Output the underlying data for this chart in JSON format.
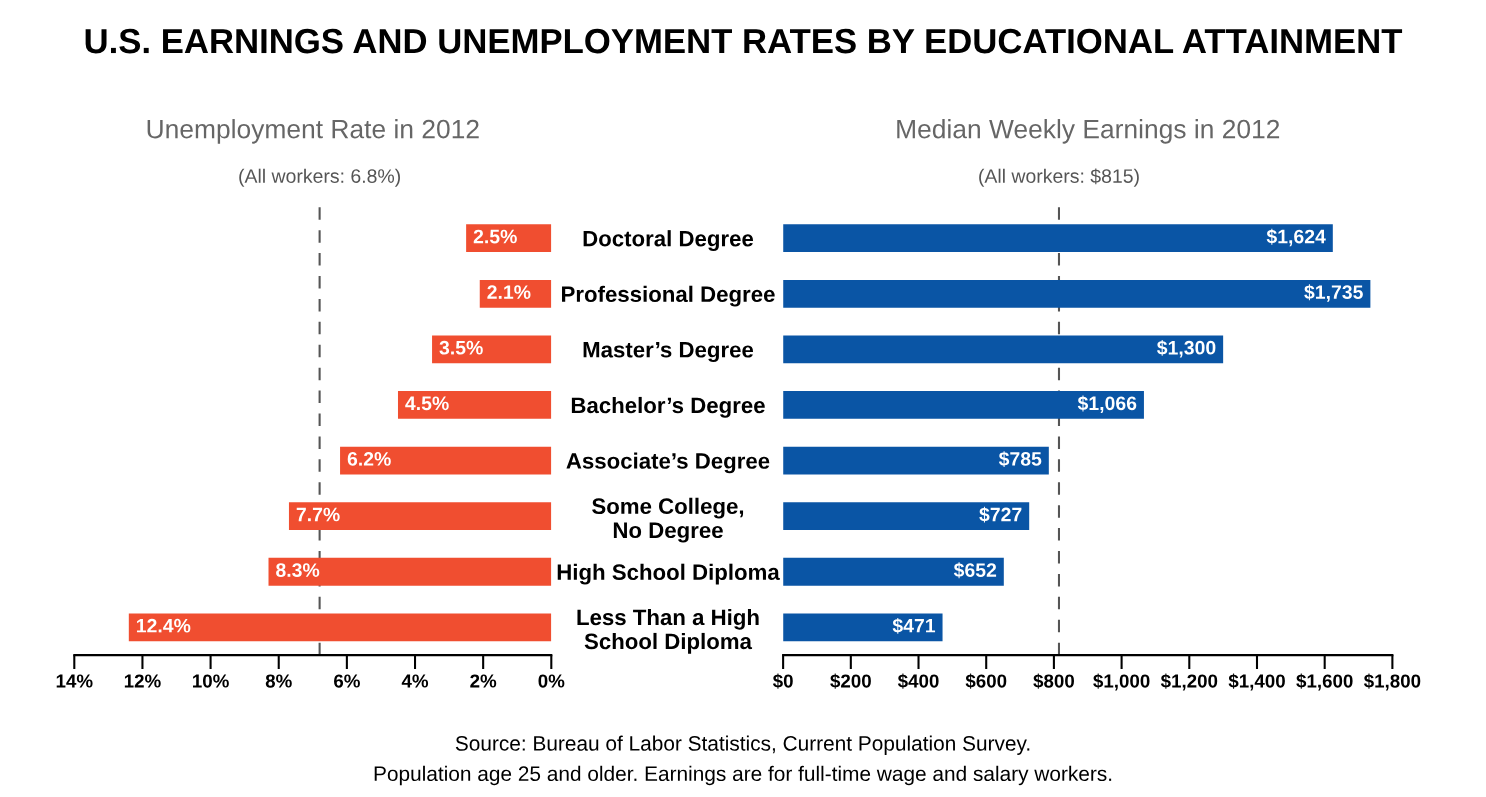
{
  "chart_data": [
    {
      "type": "bar",
      "orientation": "horizontal",
      "title": "U.S. EARNINGS AND UNEMPLOYMENT RATES BY EDUCATIONAL ATTAINMENT",
      "subtitle": "Unemployment Rate in 2012",
      "categories": [
        "Doctoral Degree",
        "Professional Degree",
        "Master’s Degree",
        "Bachelor’s Degree",
        "Associate’s Degree",
        "Some College,\nNo Degree",
        "High School Diploma",
        "Less Than a High\nSchool Diploma"
      ],
      "values": [
        2.5,
        2.1,
        3.5,
        4.5,
        6.2,
        7.7,
        8.3,
        12.4
      ],
      "color": "#f04e30",
      "value_labels": [
        "2.5%",
        "2.1%",
        "3.5%",
        "4.5%",
        "6.2%",
        "7.7%",
        "8.3%",
        "12.4%"
      ],
      "xlim": [
        14,
        0
      ],
      "xticks": [
        {
          "value": 14,
          "label": "14%"
        },
        {
          "value": 12,
          "label": "12%"
        },
        {
          "value": 10,
          "label": "10%"
        },
        {
          "value": 8,
          "label": "8%"
        },
        {
          "value": 6,
          "label": "6%"
        },
        {
          "value": 4,
          "label": "4%"
        },
        {
          "value": 2,
          "label": "2%"
        },
        {
          "value": 0,
          "label": "0%"
        }
      ],
      "ref_lines": [
        {
          "axis": "x",
          "value": 6.8,
          "label": "(All workers: 6.8%)",
          "color": "#555555",
          "line_style": "dashed"
        }
      ],
      "grid": false,
      "legend": false
    },
    {
      "type": "bar",
      "orientation": "horizontal",
      "subtitle": "Median Weekly Earnings in 2012",
      "values": [
        1624,
        1735,
        1300,
        1066,
        785,
        727,
        652,
        471
      ],
      "color": "#0a55a5",
      "value_labels": [
        "$1,624",
        "$1,735",
        "$1,300",
        "$1,066",
        "$785",
        "$727",
        "$652",
        "$471"
      ],
      "xlim": [
        0,
        1800
      ],
      "xticks": [
        {
          "value": 0,
          "label": "$0"
        },
        {
          "value": 200,
          "label": "$200"
        },
        {
          "value": 400,
          "label": "$400"
        },
        {
          "value": 600,
          "label": "$600"
        },
        {
          "value": 800,
          "label": "$800"
        },
        {
          "value": 1000,
          "label": "$1,000"
        },
        {
          "value": 1200,
          "label": "$1,200"
        },
        {
          "value": 1400,
          "label": "$1,400"
        },
        {
          "value": 1600,
          "label": "$1,600"
        },
        {
          "value": 1800,
          "label": "$1,800"
        }
      ],
      "tick_labels": "x",
      "ref_lines": [
        {
          "axis": "x",
          "value": 815,
          "label": "(All workers: $815)",
          "color": "#555555",
          "line_style": "dashed"
        }
      ],
      "annotations": [
        "Source: Bureau of Labor Statistics, Current Population Survey.",
        "Population age 25 and older. Earnings are for full-time wage and salary workers."
      ],
      "grid": false,
      "legend": false
    }
  ]
}
